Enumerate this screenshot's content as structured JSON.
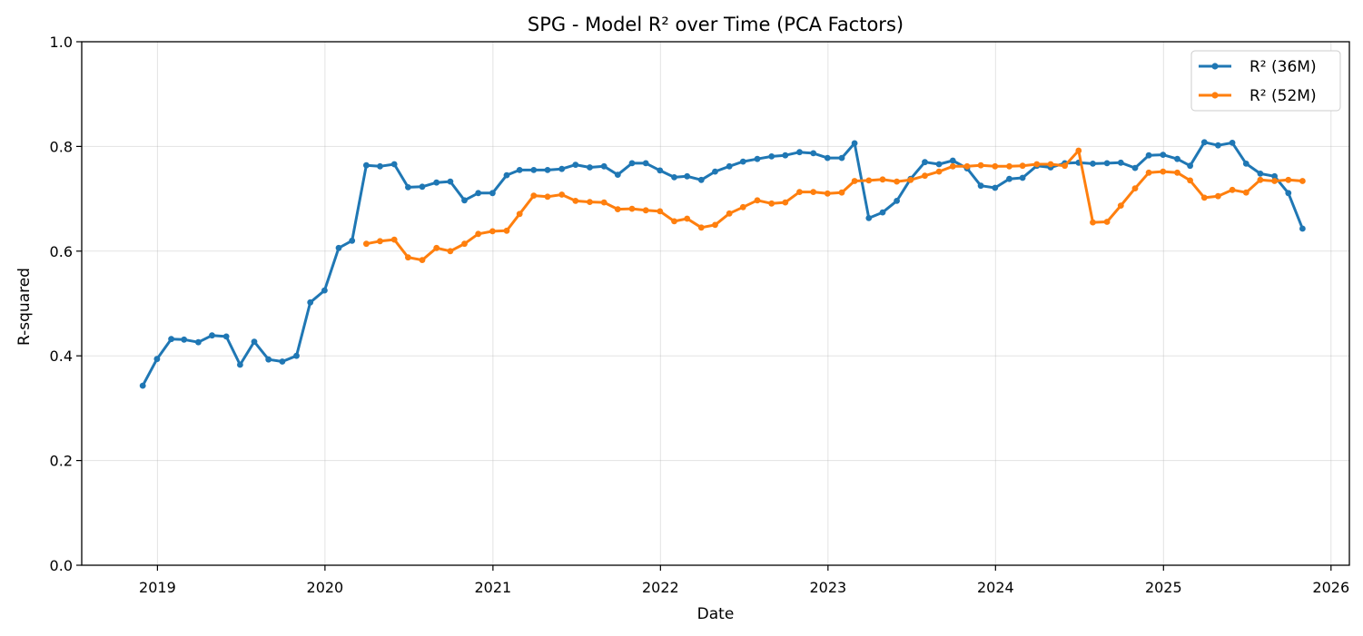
{
  "chart_data": {
    "type": "line",
    "title": "SPG - Model R² over Time (PCA Factors)",
    "xlabel": "Date",
    "ylabel": "R-squared",
    "xlim": [
      "2018-07-20",
      "2026-02-10"
    ],
    "ylim": [
      0.0,
      1.0
    ],
    "x_ticks": [
      "2019",
      "2020",
      "2021",
      "2022",
      "2023",
      "2024",
      "2025",
      "2026"
    ],
    "y_ticks": [
      "0.0",
      "0.2",
      "0.4",
      "0.6",
      "0.8",
      "1.0"
    ],
    "grid": true,
    "legend_position": "top-right",
    "series": [
      {
        "name": "R² (36M)",
        "color": "#1f77b4",
        "start": "2018-11",
        "values": [
          0.343,
          0.394,
          0.432,
          0.431,
          0.426,
          0.439,
          0.437,
          0.383,
          0.427,
          0.393,
          0.389,
          0.4,
          0.502,
          0.525,
          0.606,
          0.62,
          0.764,
          0.762,
          0.766,
          0.722,
          0.723,
          0.731,
          0.733,
          0.697,
          0.711,
          0.711,
          0.745,
          0.755,
          0.755,
          0.755,
          0.757,
          0.765,
          0.76,
          0.762,
          0.746,
          0.768,
          0.768,
          0.754,
          0.741,
          0.743,
          0.736,
          0.752,
          0.762,
          0.771,
          0.776,
          0.781,
          0.783,
          0.789,
          0.787,
          0.778,
          0.778,
          0.806,
          0.663,
          0.674,
          0.696,
          0.738,
          0.77,
          0.766,
          0.773,
          0.758,
          0.725,
          0.721,
          0.738,
          0.74,
          0.763,
          0.76,
          0.768,
          0.769,
          0.767,
          0.768,
          0.769,
          0.759,
          0.783,
          0.784,
          0.776,
          0.763,
          0.808,
          0.802,
          0.807,
          0.767,
          0.748,
          0.743,
          0.711,
          0.643
        ]
      },
      {
        "name": "R² (52M)",
        "color": "#ff7f0e",
        "start": "2020-03",
        "values": [
          0.614,
          0.619,
          0.622,
          0.588,
          0.583,
          0.606,
          0.6,
          0.614,
          0.633,
          0.638,
          0.639,
          0.671,
          0.706,
          0.704,
          0.708,
          0.696,
          0.694,
          0.693,
          0.68,
          0.681,
          0.678,
          0.676,
          0.657,
          0.662,
          0.645,
          0.65,
          0.672,
          0.684,
          0.697,
          0.691,
          0.693,
          0.713,
          0.713,
          0.71,
          0.712,
          0.734,
          0.735,
          0.737,
          0.733,
          0.736,
          0.744,
          0.752,
          0.762,
          0.762,
          0.764,
          0.762,
          0.762,
          0.763,
          0.766,
          0.766,
          0.763,
          0.792,
          0.655,
          0.656,
          0.687,
          0.72,
          0.75,
          0.752,
          0.75,
          0.735,
          0.702,
          0.705,
          0.717,
          0.712,
          0.736,
          0.734,
          0.736,
          0.734
        ]
      }
    ]
  }
}
